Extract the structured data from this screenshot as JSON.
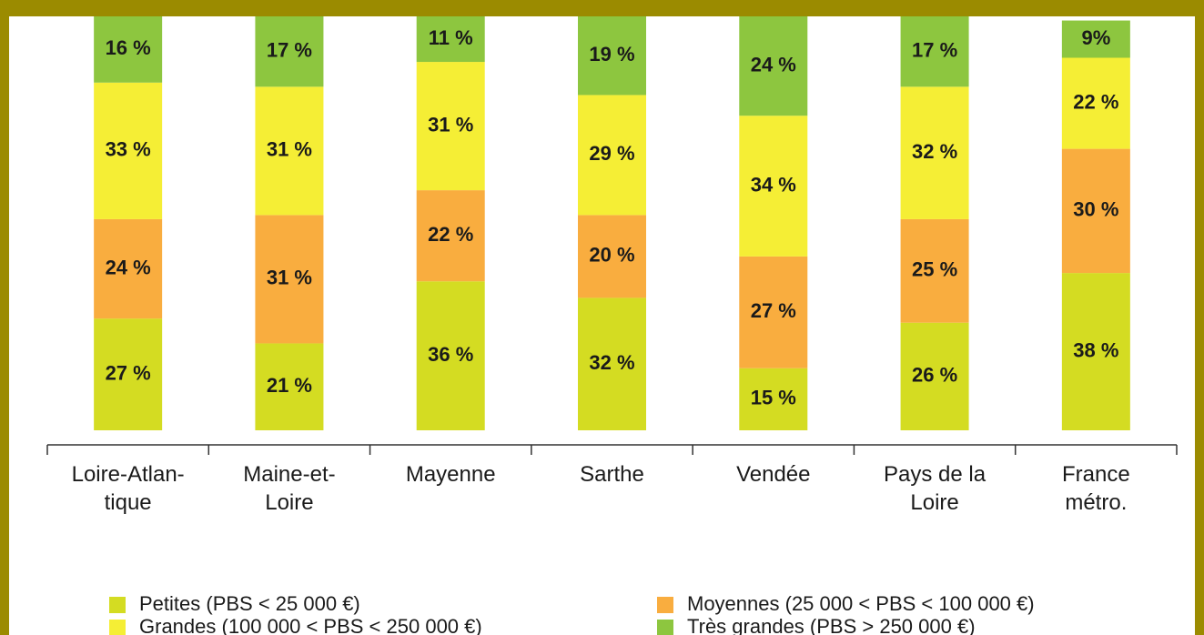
{
  "chart_data": {
    "type": "stacked_bar",
    "categories": [
      [
        "Loire-Atlan-",
        "tique"
      ],
      [
        "Maine-et-",
        "Loire"
      ],
      [
        "Mayenne"
      ],
      [
        "Sarthe"
      ],
      [
        "Vendée"
      ],
      [
        "Pays de la",
        "Loire"
      ],
      [
        "France",
        "métro."
      ]
    ],
    "ylim": [
      0,
      100
    ],
    "series": [
      {
        "name": "Petites (PBS < 25 000 €)",
        "color": "#d4dc22",
        "values": [
          27,
          21,
          36,
          32,
          15,
          26,
          38
        ],
        "value_labels": [
          "27 %",
          "21 %",
          "36 %",
          "32 %",
          "15 %",
          "26 %",
          "38 %"
        ]
      },
      {
        "name": "Moyennes (25 000 < PBS < 100 000 €)",
        "color": "#f9ad3f",
        "values": [
          24,
          31,
          22,
          20,
          27,
          25,
          30
        ],
        "value_labels": [
          "24 %",
          "31 %",
          "22 %",
          "20 %",
          "27 %",
          "25 %",
          "30 %"
        ]
      },
      {
        "name": "Grandes (100 000 < PBS < 250 000 €)",
        "color": "#f5ee35",
        "values": [
          33,
          31,
          31,
          29,
          34,
          32,
          22
        ],
        "value_labels": [
          "33 %",
          "31 %",
          "31 %",
          "29 %",
          "34 %",
          "32 %",
          "22 %"
        ]
      },
      {
        "name": "Très grandes (PBS > 250 000 €)",
        "color": "#8dc63f",
        "values": [
          16,
          17,
          11,
          19,
          24,
          17,
          9
        ],
        "value_labels": [
          "16 %",
          "17 %",
          "11 %",
          "19 %",
          "24 %",
          "17 %",
          "9%"
        ]
      }
    ]
  }
}
